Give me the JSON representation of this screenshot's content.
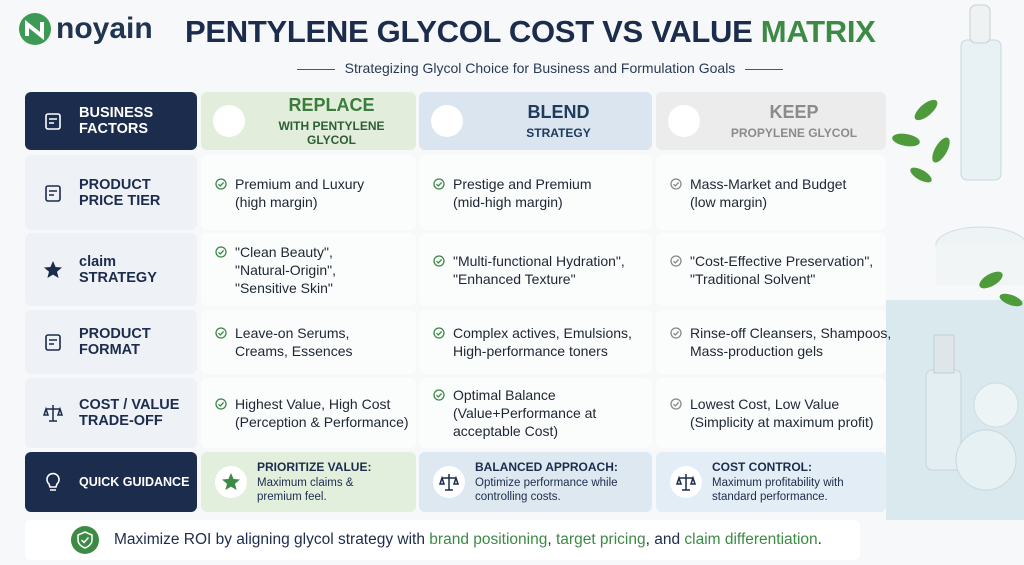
{
  "logo": "noyain",
  "header": {
    "title_main": "PENTYLENE GLYCOL COST VS VALUE",
    "title_accent": "MATRIX",
    "subtitle": "Strategizing Glycol Choice for Business and Formulation Goals"
  },
  "table": {
    "corner": [
      "BUSINESS",
      "FACTORS"
    ],
    "columns": [
      {
        "title": "REPLACE",
        "subtitle": "WITH PENTYLENE GLYCOL"
      },
      {
        "title": "BLEND",
        "subtitle": "STRATEGY"
      },
      {
        "title": "KEEP",
        "subtitle": "PROPYLENE GLYCOL"
      }
    ],
    "rows": [
      {
        "label": [
          "PRODUCT",
          "PRICE TIER"
        ],
        "cells": [
          [
            "Premium and Luxury",
            "(high margin)"
          ],
          [
            "Prestige and Premium",
            "(mid-high margin)"
          ],
          [
            "Mass-Market and Budget",
            "(low margin)"
          ]
        ]
      },
      {
        "label": [
          "claim",
          "STRATEGY"
        ],
        "cells": [
          [
            "\"Clean Beauty\",",
            "\"Natural-Origin\",",
            "\"Sensitive Skin\""
          ],
          [
            "\"Multi-functional Hydration\",",
            "\"Enhanced Texture\""
          ],
          [
            "\"Cost-Effective Preservation\",",
            "\"Traditional Solvent\""
          ]
        ]
      },
      {
        "label": [
          "PRODUCT",
          "FORMAT"
        ],
        "cells": [
          [
            "Leave-on Serums,",
            "Creams, Essences"
          ],
          [
            "Complex actives, Emulsions,",
            "High-performance toners"
          ],
          [
            "Rinse-off Cleansers, Shampoos,",
            "Mass-production gels"
          ]
        ]
      },
      {
        "label": [
          "COST / VALUE",
          "TRADE-OFF"
        ],
        "cells": [
          [
            "Highest Value, High Cost",
            "(Perception & Performance)"
          ],
          [
            "Optimal Balance",
            "(Value+Performance at",
            "acceptable Cost)"
          ],
          [
            "Lowest Cost, Low Value",
            "(Simplicity at maximum profit)"
          ]
        ]
      }
    ]
  },
  "guidance": {
    "label": "QUICK GUIDANCE",
    "cells": [
      {
        "title": "PRIORITIZE VALUE:",
        "text": [
          "Maximum claims &",
          "premium feel."
        ]
      },
      {
        "title": "BALANCED APPROACH:",
        "text": [
          "Optimize performance while",
          "controlling costs."
        ]
      },
      {
        "title": "COST CONTROL:",
        "text": [
          "Maximum profitability with",
          "standard performance."
        ]
      }
    ]
  },
  "footer": {
    "parts": [
      "Maximize ROI by aligning glycol strategy with ",
      "brand positioning",
      ", ",
      "target pricing",
      ", and ",
      "claim differentiation",
      "."
    ]
  }
}
